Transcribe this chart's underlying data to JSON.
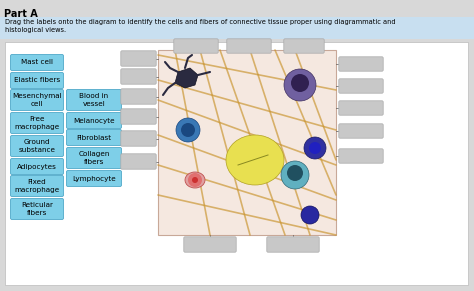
{
  "title": "Part A",
  "subtitle": "Drag the labels onto the diagram to identify the cells and fibers of connective tissue proper using diagrammatic and\nhistological views.",
  "subtitle_bg": "#c8dff0",
  "outer_bg": "#d8d8d8",
  "panel_bg": "#ffffff",
  "label_box_color": "#7ecfe8",
  "label_box_border": "#50a8c8",
  "empty_box_color": "#c8c8c8",
  "empty_box_border": "#aaaaaa",
  "img_bg": "#f5e8e0",
  "img_border": "#c8a898",
  "fiber_color": "#c8922a",
  "col1_labels": [
    {
      "text": "Mast cell",
      "lines": 1
    },
    {
      "text": "Elastic fibers",
      "lines": 1
    },
    {
      "text": "Mesenchymal\ncell",
      "lines": 2
    },
    {
      "text": "Free\nmacrophage",
      "lines": 2
    },
    {
      "text": "Ground\nsubstance",
      "lines": 2
    },
    {
      "text": "Adipocytes",
      "lines": 1
    },
    {
      "text": "Fixed\nmacrophage",
      "lines": 2
    },
    {
      "text": "Reticular\nfibers",
      "lines": 2
    }
  ],
  "col2_labels": [
    {
      "text": "Blood in\nvessel",
      "lines": 2
    },
    {
      "text": "Melanocyte",
      "lines": 1
    },
    {
      "text": "Fibroblast",
      "lines": 1
    },
    {
      "text": "Collagen\nfibers",
      "lines": 2
    },
    {
      "text": "Lymphocyte",
      "lines": 1
    }
  ]
}
